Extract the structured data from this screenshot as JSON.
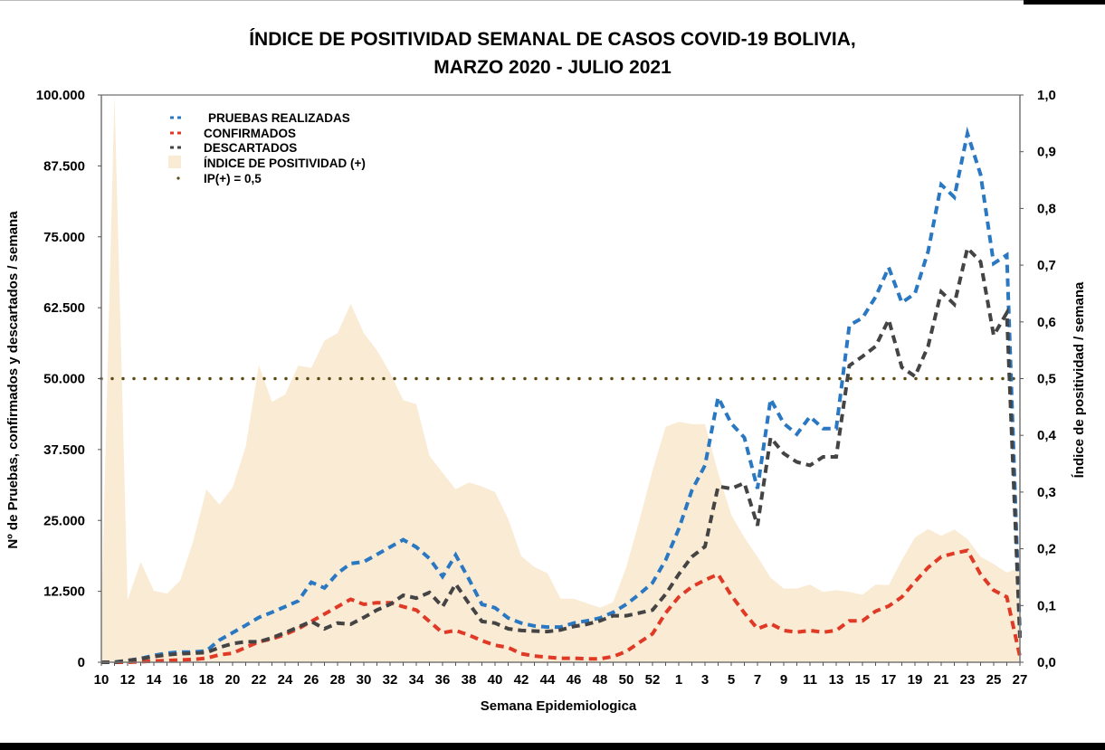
{
  "chart_data": {
    "type": "line",
    "title_line1": "ÍNDICE DE POSITIVIDAD SEMANAL DE CASOS COVID-19 BOLIVIA,",
    "title_line2": "MARZO 2020 - JULIO 2021",
    "xlabel": "Semana Epidemiologica",
    "ylabel": "Nº de Pruebas, confirmados y descartados / semana",
    "y2label": "Índice de positividad / semana",
    "ylim": [
      0,
      100000
    ],
    "y2lim": [
      0,
      1.0
    ],
    "yticks": [
      "0",
      "12.500",
      "25.000",
      "37.500",
      "50.000",
      "62.500",
      "75.000",
      "87.500",
      "100.000"
    ],
    "y2ticks": [
      "0,0",
      "0,1",
      "0,2",
      "0,3",
      "0,4",
      "0,5",
      "0,6",
      "0,7",
      "0,8",
      "0,9",
      "1,0"
    ],
    "legend_position": "top-left",
    "grid": false,
    "categories": [
      10,
      11,
      12,
      13,
      14,
      15,
      16,
      17,
      18,
      19,
      20,
      21,
      22,
      23,
      24,
      25,
      26,
      27,
      28,
      29,
      30,
      31,
      32,
      33,
      34,
      35,
      36,
      37,
      38,
      39,
      40,
      41,
      42,
      43,
      44,
      45,
      46,
      47,
      48,
      49,
      50,
      51,
      52,
      53,
      1,
      2,
      3,
      4,
      5,
      6,
      7,
      8,
      9,
      10,
      11,
      12,
      13,
      14,
      15,
      16,
      17,
      18,
      19,
      20,
      21,
      22,
      23,
      24,
      25,
      26,
      27
    ],
    "xtick_labels": [
      "10",
      "12",
      "14",
      "16",
      "18",
      "20",
      "22",
      "24",
      "26",
      "28",
      "30",
      "32",
      "34",
      "36",
      "38",
      "40",
      "42",
      "44",
      "46",
      "48",
      "50",
      "52",
      "1",
      "3",
      "5",
      "7",
      "9",
      "11",
      "13",
      "15",
      "17",
      "19",
      "21",
      "23",
      "25",
      "27"
    ],
    "series": [
      {
        "name": "PRUEBAS REALIZADAS",
        "color": "#2a78c2",
        "style": "dashed",
        "axis": "left",
        "values": [
          0,
          0,
          300,
          650,
          1200,
          1600,
          1800,
          1800,
          2000,
          3900,
          5200,
          6500,
          7900,
          8800,
          9800,
          10800,
          14100,
          13100,
          15700,
          17400,
          17700,
          19000,
          20300,
          21600,
          20300,
          18300,
          15100,
          18900,
          14700,
          10200,
          9600,
          7800,
          6900,
          6400,
          6200,
          6200,
          6900,
          7300,
          7800,
          8800,
          10200,
          12000,
          14000,
          18000,
          23500,
          30300,
          34700,
          46700,
          42100,
          39600,
          30600,
          46400,
          42100,
          40200,
          43300,
          41200,
          41200,
          59400,
          60700,
          64400,
          69600,
          63400,
          65000,
          72400,
          84200,
          82000,
          93200,
          86000,
          70300,
          71800,
          5000
        ]
      },
      {
        "name": "CONFIRMADOS",
        "color": "#e03a26",
        "style": "dashed",
        "axis": "left",
        "values": [
          0,
          0,
          0,
          100,
          200,
          300,
          400,
          500,
          700,
          1300,
          1600,
          2600,
          3600,
          4100,
          4900,
          5900,
          7200,
          8500,
          9800,
          11100,
          10200,
          10500,
          10500,
          9800,
          9200,
          7200,
          5200,
          5600,
          4800,
          3800,
          3000,
          2600,
          1500,
          1100,
          900,
          700,
          700,
          600,
          600,
          1000,
          1900,
          3500,
          5000,
          8700,
          11500,
          13300,
          14500,
          15500,
          11800,
          8700,
          5900,
          6800,
          5600,
          5300,
          5600,
          5300,
          5600,
          7300,
          7300,
          9000,
          9900,
          11500,
          14200,
          16700,
          18600,
          19200,
          19700,
          15500,
          12700,
          11500,
          1000
        ]
      },
      {
        "name": "DESCARTADOS",
        "color": "#444444",
        "style": "dashed",
        "axis": "left",
        "values": [
          0,
          0,
          300,
          600,
          1000,
          1300,
          1500,
          1600,
          1700,
          2600,
          3300,
          3600,
          3600,
          4300,
          5200,
          6200,
          7200,
          5900,
          6900,
          6700,
          7900,
          9200,
          10200,
          11800,
          11300,
          12300,
          9800,
          13800,
          10400,
          7200,
          6900,
          5900,
          5600,
          5500,
          5400,
          5700,
          6300,
          6700,
          7300,
          8200,
          8200,
          8700,
          9200,
          12000,
          15500,
          18600,
          20400,
          31000,
          30600,
          31600,
          24100,
          39600,
          36800,
          35300,
          34700,
          36200,
          36200,
          52300,
          53900,
          55700,
          60400,
          52000,
          50400,
          55700,
          65300,
          63100,
          73000,
          70600,
          57600,
          61600,
          4300
        ]
      },
      {
        "name": "ÍNDICE DE POSITIVIDAD (+)",
        "color": "#faebd5",
        "style": "area",
        "axis": "right",
        "values": [
          0.08,
          1.0,
          0.11,
          0.177,
          0.126,
          0.121,
          0.144,
          0.213,
          0.305,
          0.278,
          0.308,
          0.38,
          0.524,
          0.459,
          0.472,
          0.523,
          0.519,
          0.567,
          0.58,
          0.632,
          0.58,
          0.55,
          0.51,
          0.462,
          0.455,
          0.364,
          0.334,
          0.305,
          0.317,
          0.31,
          0.3,
          0.253,
          0.187,
          0.168,
          0.157,
          0.112,
          0.112,
          0.104,
          0.096,
          0.106,
          0.168,
          0.25,
          0.338,
          0.415,
          0.424,
          0.42,
          0.42,
          0.334,
          0.26,
          0.22,
          0.186,
          0.149,
          0.13,
          0.13,
          0.137,
          0.124,
          0.127,
          0.124,
          0.119,
          0.137,
          0.136,
          0.18,
          0.22,
          0.235,
          0.223,
          0.234,
          0.217,
          0.186,
          0.173,
          0.158,
          0.167
        ]
      },
      {
        "name": "IP(+) = 0,5",
        "color": "#5a4a14",
        "style": "dotted",
        "axis": "right",
        "constant": 0.5
      }
    ]
  }
}
